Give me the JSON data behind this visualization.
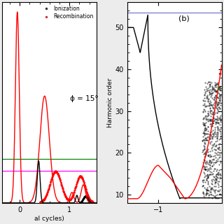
{
  "left_panel": {
    "xlim": [
      -0.35,
      1.55
    ],
    "ylim": [
      0,
      1.05
    ],
    "xticks": [
      0,
      1
    ],
    "green_hline": 0.23,
    "magenta_hline": 0.17,
    "phi_text": "ϕ = 15°",
    "legend_ionization": "Ionization",
    "legend_recombination": "Recombination",
    "xlabel": "al cycles)"
  },
  "right_panel": {
    "ylabel": "Harmonic order",
    "xlim": [
      -1.65,
      0.32
    ],
    "ylim": [
      8,
      56
    ],
    "yticks": [
      10,
      20,
      30,
      40,
      50
    ],
    "xticks": [
      -1
    ],
    "blue_hline_y": 53.5,
    "label_b": "(b)"
  },
  "bg_color": "#ececec",
  "panel_bg": "#ffffff"
}
